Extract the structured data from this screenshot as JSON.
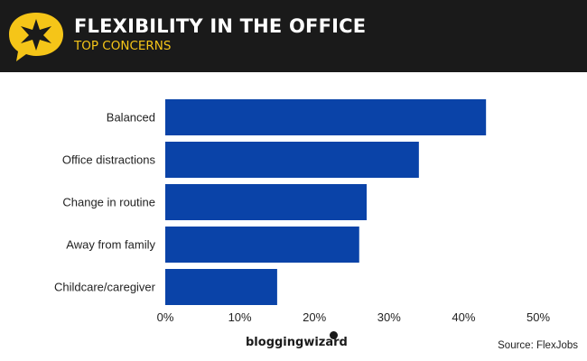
{
  "header": {
    "title": "FLEXIBILITY IN THE OFFICE",
    "subtitle": "TOP CONCERNS"
  },
  "colors": {
    "bar": "#0a43a8",
    "header_bg": "#1a1a1a",
    "accent": "#f5c518"
  },
  "footer": {
    "brand": "bloggingwizard",
    "source": "Source: FlexJobs"
  },
  "chart_data": {
    "type": "bar",
    "orientation": "horizontal",
    "categories": [
      "Balanced",
      "Office distractions",
      "Change in routine",
      "Away from family",
      "Childcare/caregiver"
    ],
    "values": [
      43,
      34,
      27,
      26,
      15
    ],
    "xlim": [
      0,
      50
    ],
    "x_ticks": [
      "0%",
      "10%",
      "20%",
      "30%",
      "40%",
      "50%"
    ],
    "grid": false,
    "legend": "none"
  }
}
